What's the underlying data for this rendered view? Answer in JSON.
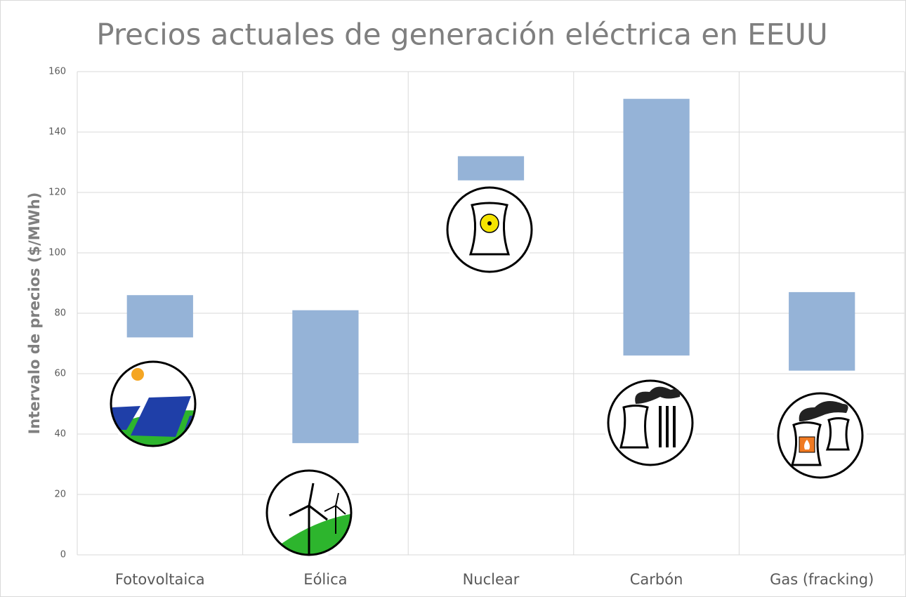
{
  "chart_data": {
    "type": "range",
    "title": "Precios actuales de generación eléctrica en EEUU",
    "y_label": "Intervalo de precios ($/MWh)",
    "categories": [
      "Fotovoltaica",
      "Eólica",
      "Nuclear",
      "Carbón",
      "Gas (fracking)"
    ],
    "low": [
      72,
      37,
      124,
      66,
      61
    ],
    "high": [
      86,
      81,
      132,
      151,
      87
    ],
    "color": "#95b3d7",
    "ylim": [
      0,
      160
    ],
    "yticks": [
      0,
      20,
      40,
      60,
      80,
      100,
      120,
      140,
      160
    ],
    "grid": true
  }
}
